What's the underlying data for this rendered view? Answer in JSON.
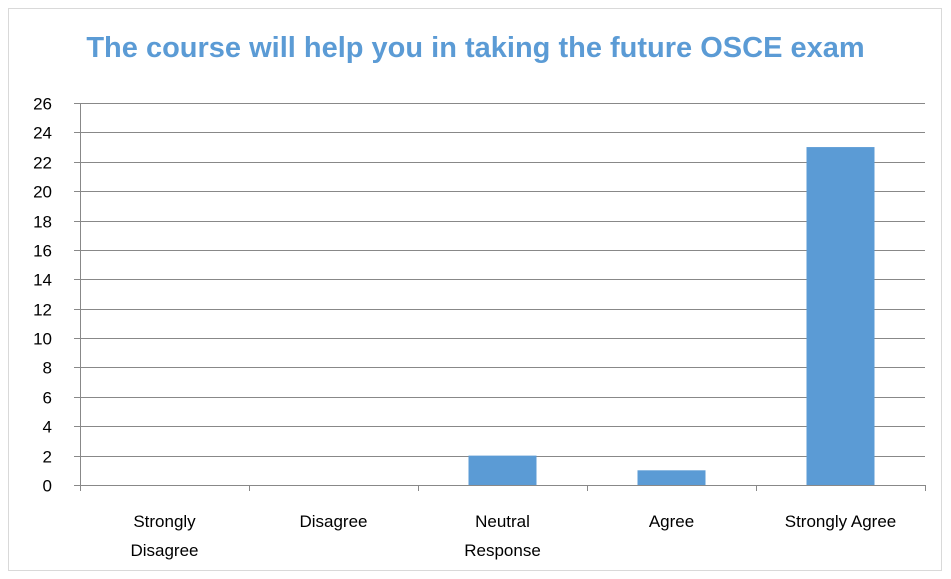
{
  "chart_data": {
    "type": "bar",
    "title": "The course will help you in taking the future OSCE exam",
    "categories": [
      [
        "Strongly",
        "Disagree"
      ],
      [
        "Disagree"
      ],
      [
        "Neutral",
        "Response"
      ],
      [
        "Agree"
      ],
      [
        "Strongly Agree"
      ]
    ],
    "values": [
      0,
      0,
      2,
      1,
      23
    ],
    "ylim": [
      0,
      26
    ],
    "ytick_step": 2,
    "yticks": [
      "0",
      "2",
      "4",
      "6",
      "8",
      "10",
      "12",
      "14",
      "16",
      "18",
      "20",
      "22",
      "24",
      "26"
    ],
    "grid": true,
    "legend": "none",
    "bar_color": "#5b9bd5",
    "grid_color": "#888888"
  }
}
